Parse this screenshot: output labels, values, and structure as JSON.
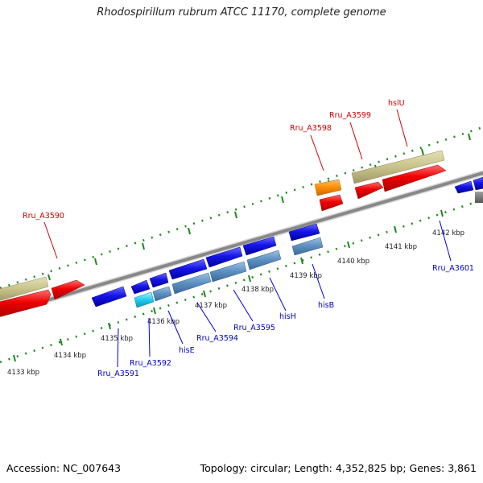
{
  "header": {
    "title": "Rhodospirillum rubrum ATCC 11170, complete genome"
  },
  "footer": {
    "accession": "Accession: NC_007643",
    "summary": "Topology: circular; Length: 4,352,825 bp; Genes: 3,861"
  },
  "colors": {
    "forward_gene": "#e60000",
    "reverse_gene": "#1010e0",
    "gc_feature": "#c8c28a",
    "misc_orange": "#ff8c00",
    "cds_steelblue": "#5b8ec0",
    "cds_cyan": "#22ccee",
    "backbone": "#888888",
    "tick_green": "#1a8a1a",
    "label_red": "#cc0000",
    "label_blue": "#0000cc"
  },
  "scale": {
    "tick_labels": [
      "4133 kbp",
      "4134 kbp",
      "4135 kbp",
      "4136 kbp",
      "4137 kbp",
      "4138 kbp",
      "4139 kbp",
      "4140 kbp",
      "4141 kbp",
      "4142 kbp"
    ]
  },
  "gene_labels": {
    "forward": [
      "Rru_A3590",
      "Rru_A3598",
      "Rru_A3599",
      "hslU"
    ],
    "reverse": [
      "Rru_A3591",
      "Rru_A3592",
      "hisE",
      "Rru_A3594",
      "Rru_A3595",
      "hisH",
      "hisB",
      "Rru_A3601"
    ]
  }
}
